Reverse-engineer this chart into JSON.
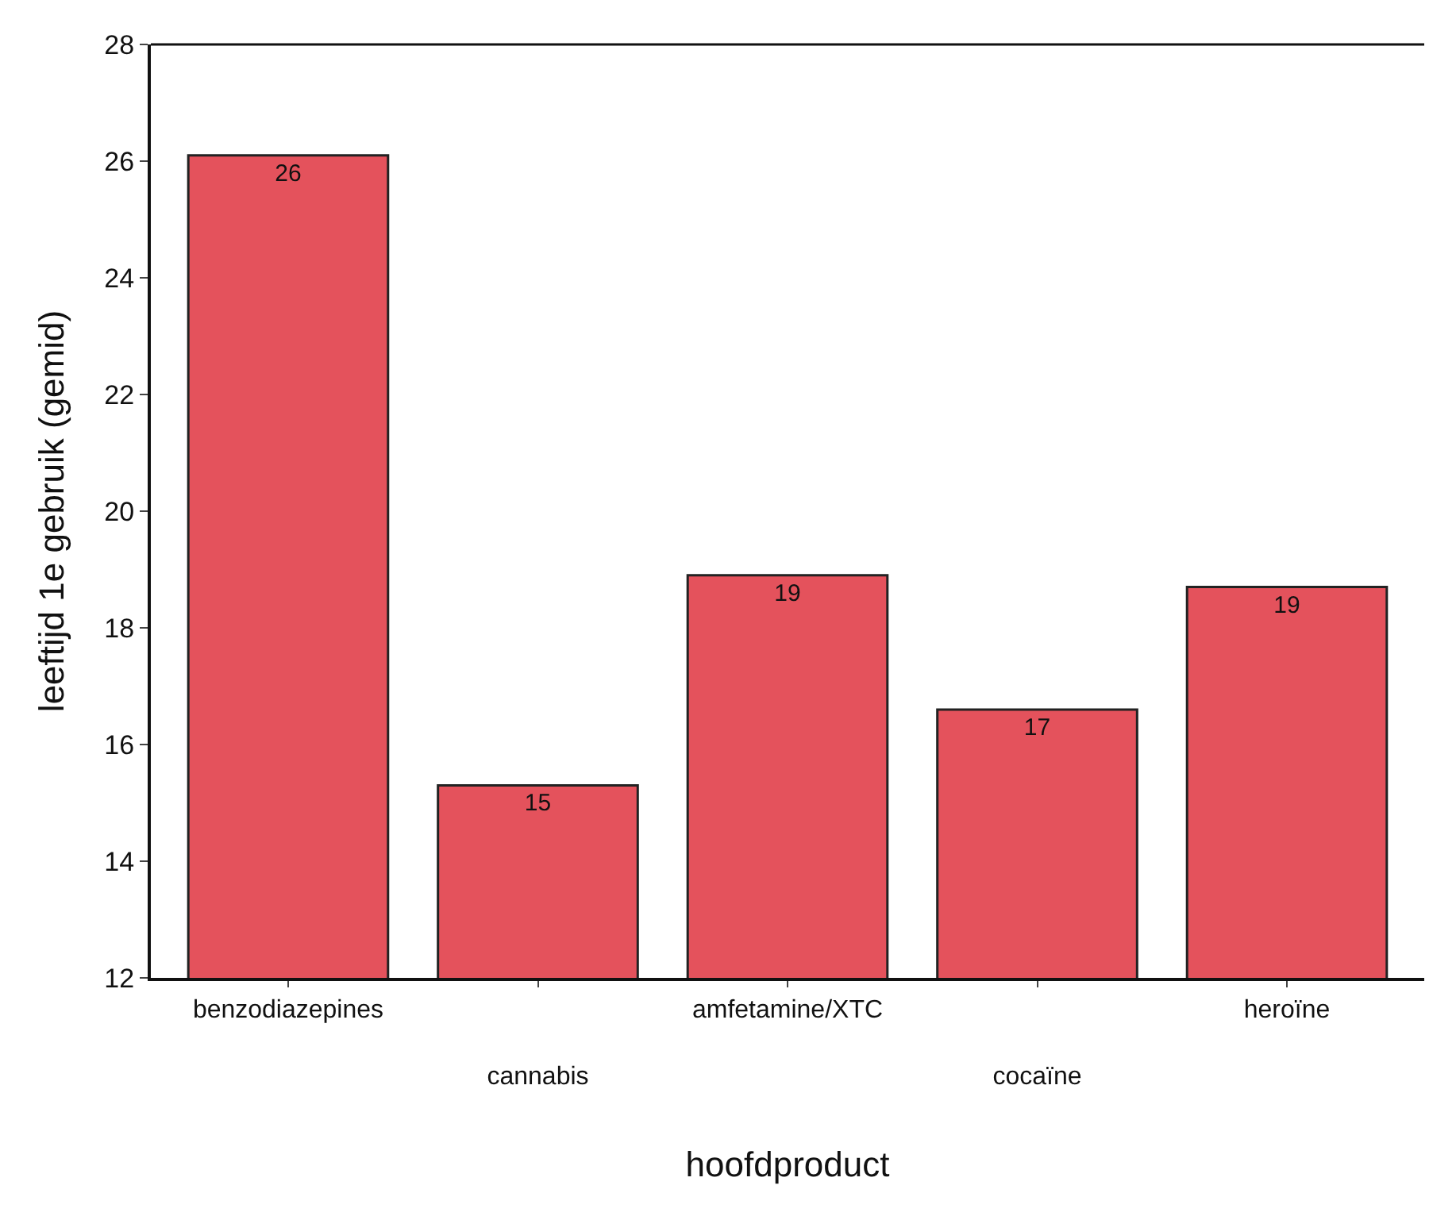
{
  "chart_data": {
    "type": "bar",
    "xlabel": "hoofdproduct",
    "ylabel": "leeftijd 1e gebruik (gemid)",
    "categories": [
      "benzodiazepines",
      "cannabis",
      "amfetamine/XTC",
      "cocaïne",
      "heroïne"
    ],
    "values": [
      26.1,
      15.3,
      18.9,
      16.6,
      18.7
    ],
    "value_labels": [
      "26",
      "15",
      "19",
      "17",
      "19"
    ],
    "color": "#e4525c",
    "ylim": [
      12,
      28
    ],
    "yticks": [
      12,
      14,
      16,
      18,
      20,
      22,
      24,
      26,
      28
    ],
    "grid": false
  }
}
